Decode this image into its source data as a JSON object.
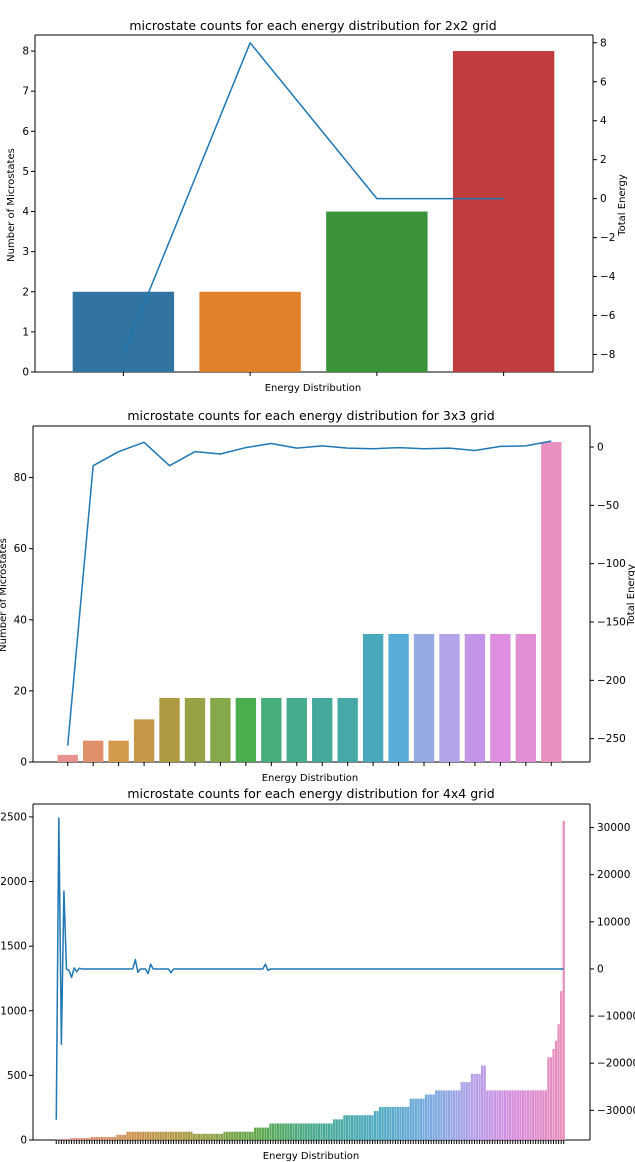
{
  "chart_data": [
    {
      "type": "bar",
      "title": "microstate counts for each energy distribution for 2x2 grid",
      "xlabel": "Energy Distribution",
      "ylabel": "Number of Microstates",
      "y2label": "Total Energy",
      "ylim": [
        0,
        8.4
      ],
      "yticks": [
        0,
        1,
        2,
        3,
        4,
        5,
        6,
        7,
        8
      ],
      "y2lim": [
        -8.9,
        8.4
      ],
      "y2ticks": [
        -8,
        -6,
        -4,
        -2,
        0,
        2,
        4,
        6,
        8
      ],
      "values": [
        2,
        2,
        4,
        8
      ],
      "colors": [
        "#3274a1",
        "#e1812c",
        "#3a923a",
        "#c03d3e"
      ],
      "line": {
        "color": "#1f77b4",
        "values": [
          -8,
          8,
          0,
          0
        ]
      }
    },
    {
      "type": "bar",
      "title": "microstate counts for each energy distribution for 3x3 grid",
      "xlabel": "Energy Distribution",
      "ylabel": "Number of Microstates",
      "y2label": "Total Energy",
      "ylim": [
        0,
        94.5
      ],
      "yticks": [
        0,
        20,
        40,
        60,
        80
      ],
      "y2lim": [
        -270,
        18
      ],
      "y2ticks": [
        -250,
        -200,
        -150,
        -100,
        -50,
        0
      ],
      "values": [
        2,
        6,
        6,
        12,
        18,
        18,
        18,
        18,
        18,
        18,
        18,
        18,
        36,
        36,
        36,
        36,
        36,
        36,
        36,
        90
      ],
      "colors": [
        "#e6928f",
        "#e0906a",
        "#d39a4e",
        "#c49848",
        "#ad9a43",
        "#98a145",
        "#84a84a",
        "#4bae4e",
        "#46ad7b",
        "#47ab8f",
        "#47a99c",
        "#48a7a7",
        "#4aa8bd",
        "#58abd8",
        "#97a9e3",
        "#b4a2e8",
        "#c494e8",
        "#dd8ee0",
        "#e38ed4",
        "#e891c0"
      ],
      "line": {
        "color": "#1f77b4",
        "values": [
          -256,
          -16,
          -4,
          4,
          -16,
          -4,
          -6,
          -0.5,
          3,
          -1,
          1,
          -1,
          -1.5,
          -0.5,
          -1.5,
          -1,
          -3,
          0.5,
          1,
          5
        ]
      }
    },
    {
      "type": "bar",
      "title": "microstate counts for each energy distribution for 4x4 grid",
      "xlabel": "Energy Distribution",
      "ylabel": "",
      "y2label": "",
      "ylim": [
        0,
        2600
      ],
      "yticks": [
        0,
        500,
        1000,
        1500,
        2000,
        2500
      ],
      "y2lim": [
        -36300,
        35000
      ],
      "y2ticks": [
        -30000,
        -20000,
        -10000,
        0,
        10000,
        20000,
        30000
      ],
      "bar_count": 200,
      "bar_values_note": "",
      "line": {
        "color": "#1f77b4"
      }
    }
  ]
}
